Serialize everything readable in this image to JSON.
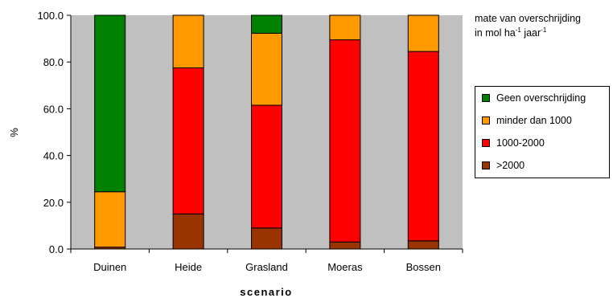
{
  "chart_data": {
    "type": "bar",
    "stacked": true,
    "categories": [
      "Duinen",
      "Heide",
      "Grasland",
      "Moeras",
      "Bossen"
    ],
    "series": [
      {
        "name": ">2000",
        "color": "#993300",
        "values": [
          0.8,
          15.0,
          9.0,
          3.0,
          3.5
        ]
      },
      {
        "name": "1000-2000",
        "color": "#ff0000",
        "values": [
          0.0,
          62.5,
          52.5,
          86.5,
          81.0
        ]
      },
      {
        "name": "minder dan 1000",
        "color": "#ff9900",
        "values": [
          23.7,
          22.5,
          30.8,
          10.5,
          15.5
        ]
      },
      {
        "name": "Geen overschrijding",
        "color": "#008000",
        "values": [
          75.5,
          0.0,
          7.7,
          0.0,
          0.0
        ]
      }
    ],
    "y_ticks": [
      "0.0",
      "20.0",
      "40.0",
      "60.0",
      "80.0",
      "100.0"
    ],
    "ylim": [
      0,
      100
    ],
    "xlabel": "scenario",
    "ylabel": "%",
    "grid": false,
    "plot_background": "#c0c0c0",
    "legend_placement": "right",
    "legend_title": {
      "line1": "mate van overschrijding",
      "line2_prefix": "in mol ha",
      "sup1": "-1",
      "mid": " jaar",
      "sup2": "-1"
    }
  }
}
